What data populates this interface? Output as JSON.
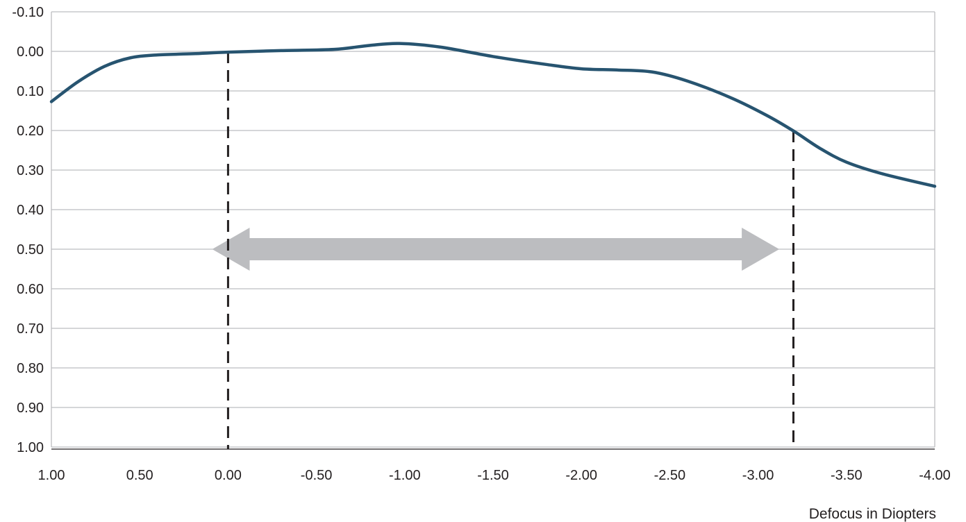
{
  "chart_data": {
    "type": "line",
    "title": "",
    "xlabel": "Defocus in Diopters",
    "ylabel": "",
    "xlim": [
      1.0,
      -4.0
    ],
    "ylim": [
      -0.1,
      1.0
    ],
    "y_inverted": true,
    "grid": true,
    "x_ticks": [
      "1.00",
      "0.50",
      "0.00",
      "-0.50",
      "-1.00",
      "-1.50",
      "-2.00",
      "-2.50",
      "-3.00",
      "-3.50",
      "-4.00"
    ],
    "y_ticks": [
      "-0.10",
      "0.00",
      "0.10",
      "0.20",
      "0.30",
      "0.40",
      "0.50",
      "0.60",
      "0.70",
      "0.80",
      "0.90",
      "1.00"
    ],
    "series": [
      {
        "color": "#275470",
        "points": [
          {
            "x": 1.0,
            "y": 0.127
          },
          {
            "x": 0.85,
            "y": 0.077
          },
          {
            "x": 0.7,
            "y": 0.038
          },
          {
            "x": 0.55,
            "y": 0.016
          },
          {
            "x": 0.4,
            "y": 0.009
          },
          {
            "x": 0.2,
            "y": 0.006
          },
          {
            "x": 0.0,
            "y": 0.002
          },
          {
            "x": -0.3,
            "y": -0.002
          },
          {
            "x": -0.6,
            "y": -0.005
          },
          {
            "x": -0.8,
            "y": -0.015
          },
          {
            "x": -0.97,
            "y": -0.02
          },
          {
            "x": -1.2,
            "y": -0.011
          },
          {
            "x": -1.5,
            "y": 0.013
          },
          {
            "x": -1.8,
            "y": 0.033
          },
          {
            "x": -2.0,
            "y": 0.044
          },
          {
            "x": -2.2,
            "y": 0.047
          },
          {
            "x": -2.4,
            "y": 0.052
          },
          {
            "x": -2.6,
            "y": 0.075
          },
          {
            "x": -2.85,
            "y": 0.118
          },
          {
            "x": -3.05,
            "y": 0.162
          },
          {
            "x": -3.2,
            "y": 0.201
          },
          {
            "x": -3.35,
            "y": 0.245
          },
          {
            "x": -3.5,
            "y": 0.28
          },
          {
            "x": -3.7,
            "y": 0.309
          },
          {
            "x": -4.0,
            "y": 0.341
          }
        ]
      }
    ],
    "reference_lines": [
      {
        "x": 0.0,
        "style": "dashed",
        "color": "#231f20"
      },
      {
        "x": -3.2,
        "style": "dashed",
        "color": "#231f20"
      }
    ],
    "range_arrow": {
      "from": 0.09,
      "to": -3.12,
      "y": 0.5,
      "color": "#bcbdc0"
    },
    "colors": {
      "grid": "#bcbdc0",
      "axis": "#231f20",
      "text": "#231f20"
    }
  }
}
